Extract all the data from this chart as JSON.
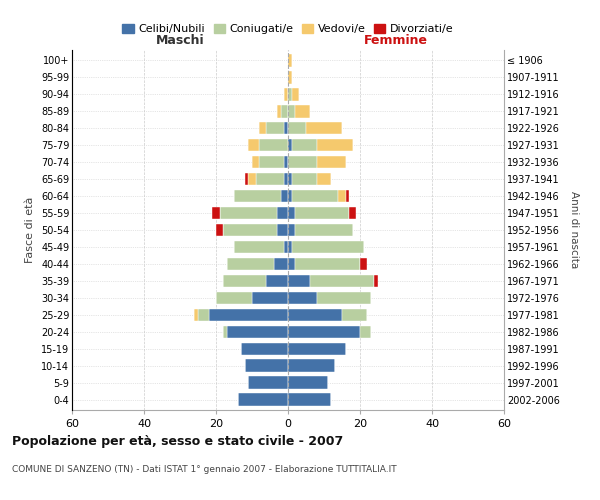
{
  "age_groups": [
    "0-4",
    "5-9",
    "10-14",
    "15-19",
    "20-24",
    "25-29",
    "30-34",
    "35-39",
    "40-44",
    "45-49",
    "50-54",
    "55-59",
    "60-64",
    "65-69",
    "70-74",
    "75-79",
    "80-84",
    "85-89",
    "90-94",
    "95-99",
    "100+"
  ],
  "birth_years": [
    "2002-2006",
    "1997-2001",
    "1992-1996",
    "1987-1991",
    "1982-1986",
    "1977-1981",
    "1972-1976",
    "1967-1971",
    "1962-1966",
    "1957-1961",
    "1952-1956",
    "1947-1951",
    "1942-1946",
    "1937-1941",
    "1932-1936",
    "1927-1931",
    "1922-1926",
    "1917-1921",
    "1912-1916",
    "1907-1911",
    "≤ 1906"
  ],
  "males": {
    "celibi": [
      14,
      11,
      12,
      13,
      17,
      22,
      10,
      6,
      4,
      1,
      3,
      3,
      2,
      1,
      1,
      0,
      1,
      0,
      0,
      0,
      0
    ],
    "coniugati": [
      0,
      0,
      0,
      0,
      1,
      3,
      10,
      12,
      13,
      14,
      15,
      16,
      13,
      8,
      7,
      8,
      5,
      2,
      0,
      0,
      0
    ],
    "vedovi": [
      0,
      0,
      0,
      0,
      0,
      1,
      0,
      0,
      0,
      0,
      0,
      0,
      0,
      2,
      2,
      3,
      2,
      1,
      1,
      0,
      0
    ],
    "divorziati": [
      0,
      0,
      0,
      0,
      0,
      0,
      0,
      0,
      0,
      0,
      2,
      2,
      0,
      1,
      0,
      0,
      0,
      0,
      0,
      0,
      0
    ]
  },
  "females": {
    "nubili": [
      12,
      11,
      13,
      16,
      20,
      15,
      8,
      6,
      2,
      1,
      2,
      2,
      1,
      1,
      0,
      1,
      0,
      0,
      0,
      0,
      0
    ],
    "coniugate": [
      0,
      0,
      0,
      0,
      3,
      7,
      15,
      18,
      18,
      20,
      16,
      15,
      13,
      7,
      8,
      7,
      5,
      2,
      1,
      0,
      0
    ],
    "vedove": [
      0,
      0,
      0,
      0,
      0,
      0,
      0,
      0,
      0,
      0,
      0,
      0,
      2,
      4,
      8,
      10,
      10,
      4,
      2,
      1,
      1
    ],
    "divorziate": [
      0,
      0,
      0,
      0,
      0,
      0,
      0,
      1,
      2,
      0,
      0,
      2,
      1,
      0,
      0,
      0,
      0,
      0,
      0,
      0,
      0
    ]
  },
  "colors": {
    "celibi_nubili": "#4472a8",
    "coniugati": "#b8cfa0",
    "vedovi": "#f5c96d",
    "divorziati": "#cc1111"
  },
  "xlim": 60,
  "title": "Popolazione per età, sesso e stato civile - 2007",
  "subtitle": "COMUNE DI SANZENO (TN) - Dati ISTAT 1° gennaio 2007 - Elaborazione TUTTITALIA.IT",
  "xlabel_left": "Maschi",
  "xlabel_right": "Femmine",
  "ylabel": "Fasce di età",
  "ylabel_right": "Anni di nascita",
  "legend_labels": [
    "Celibi/Nubili",
    "Coniugati/e",
    "Vedovi/e",
    "Divorziati/e"
  ],
  "background_color": "#ffffff",
  "grid_color": "#cccccc"
}
